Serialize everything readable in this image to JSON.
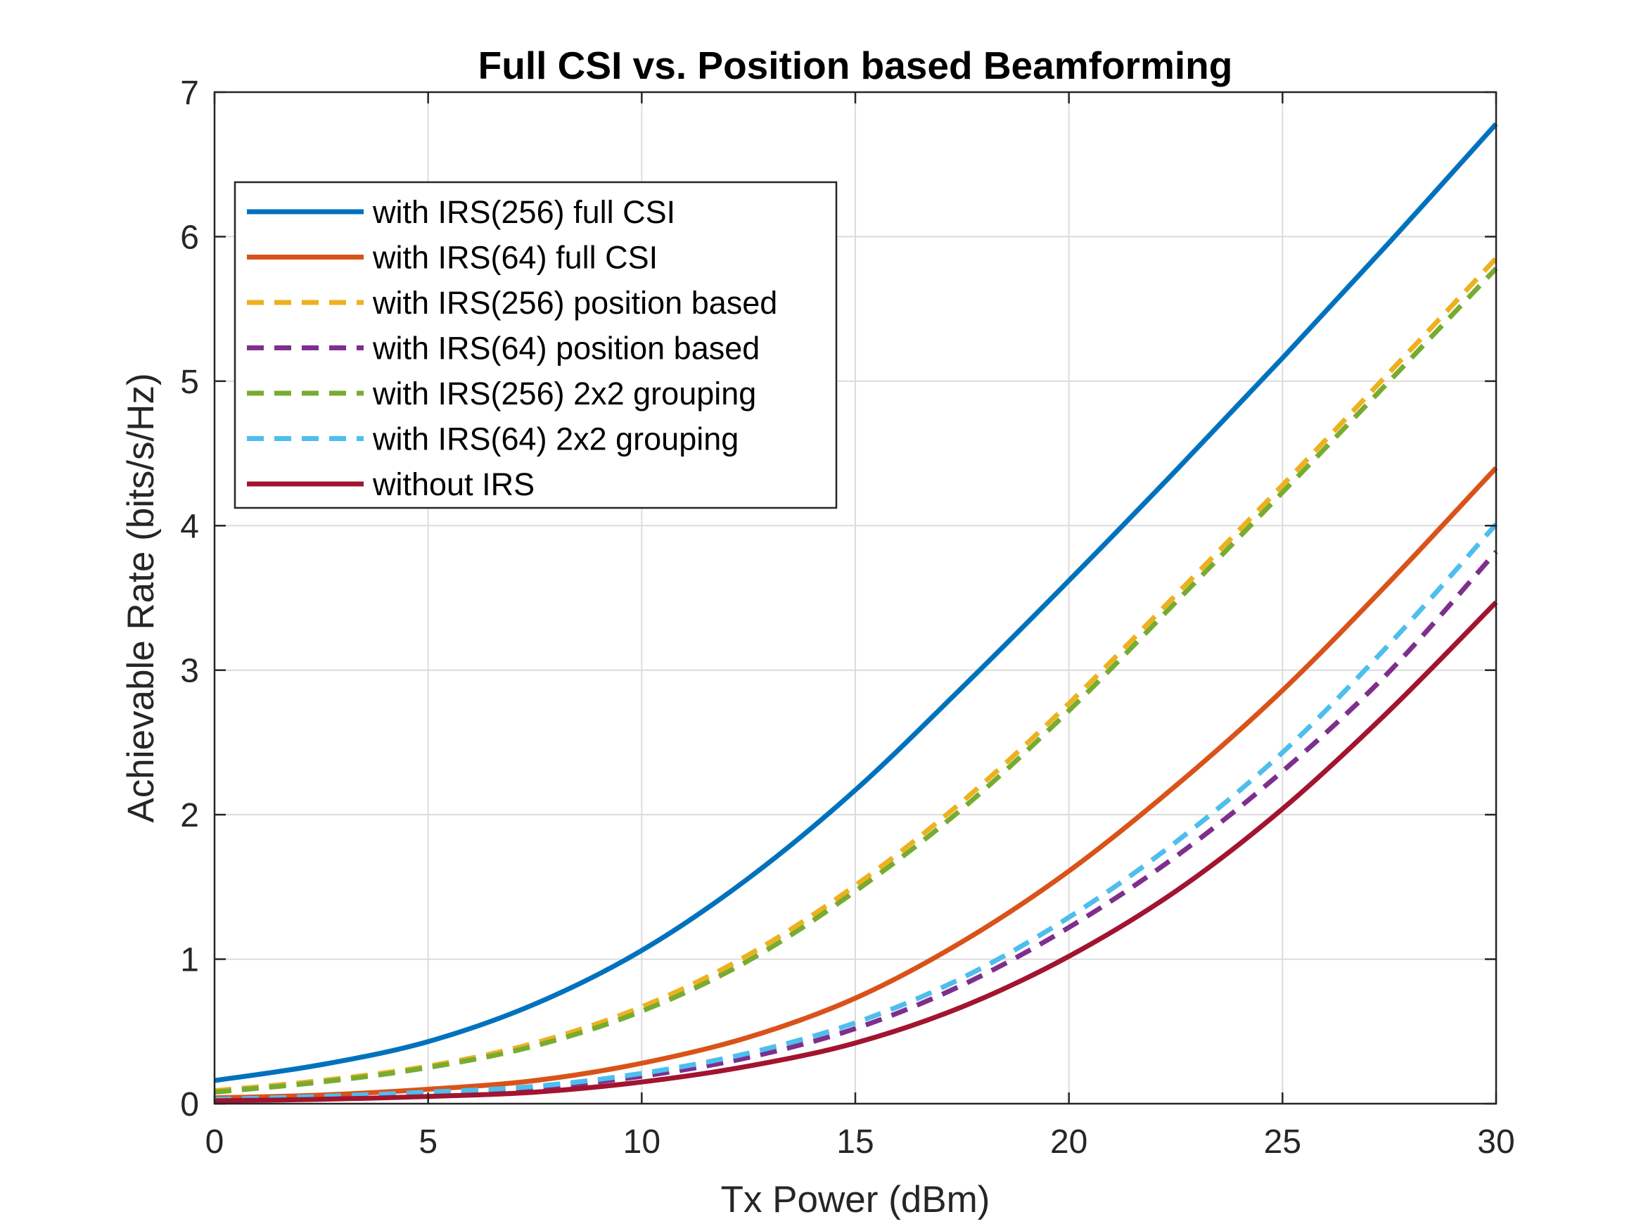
{
  "chart_data": {
    "type": "line",
    "title": "Full CSI vs. Position based Beamforming",
    "xlabel": "Tx Power (dBm)",
    "ylabel": "Achievable Rate (bits/s/Hz)",
    "xlim": [
      0,
      30
    ],
    "ylim": [
      0,
      7
    ],
    "xticks": [
      0,
      5,
      10,
      15,
      20,
      25,
      30
    ],
    "yticks": [
      0,
      1,
      2,
      3,
      4,
      5,
      6,
      7
    ],
    "grid": true,
    "legend_position": "top-left",
    "x": [
      0,
      2.5,
      5,
      7.5,
      10,
      12.5,
      15,
      17.5,
      20,
      22.5,
      25,
      27.5,
      30
    ],
    "series": [
      {
        "name": "with IRS(256) full CSI",
        "style": "solid",
        "color": "#0072BD",
        "values": [
          0.16,
          0.27,
          0.43,
          0.69,
          1.06,
          1.56,
          2.17,
          2.88,
          3.62,
          4.38,
          5.16,
          5.96,
          6.78
        ]
      },
      {
        "name": "with IRS(64) full CSI",
        "style": "solid",
        "color": "#D95319",
        "values": [
          0.04,
          0.06,
          0.1,
          0.16,
          0.28,
          0.46,
          0.73,
          1.12,
          1.61,
          2.2,
          2.86,
          3.61,
          4.4
        ]
      },
      {
        "name": "with IRS(256) position based",
        "style": "dashed",
        "color": "#EDB120",
        "values": [
          0.09,
          0.16,
          0.26,
          0.42,
          0.67,
          1.03,
          1.51,
          2.09,
          2.77,
          3.52,
          4.28,
          5.06,
          5.85
        ]
      },
      {
        "name": "with IRS(64) position based",
        "style": "dashed",
        "color": "#7E2F8E",
        "values": [
          0.03,
          0.04,
          0.07,
          0.11,
          0.19,
          0.32,
          0.52,
          0.82,
          1.22,
          1.71,
          2.3,
          2.99,
          3.82
        ]
      },
      {
        "name": "with IRS(256) 2x2 grouping",
        "style": "dashed",
        "color": "#77AC30",
        "values": [
          0.08,
          0.15,
          0.25,
          0.4,
          0.64,
          0.99,
          1.47,
          2.04,
          2.72,
          3.47,
          4.23,
          5.0,
          5.78
        ]
      },
      {
        "name": "with IRS(64) 2x2 grouping",
        "style": "dashed",
        "color": "#4DBEEE",
        "values": [
          0.03,
          0.05,
          0.08,
          0.12,
          0.21,
          0.35,
          0.56,
          0.87,
          1.29,
          1.81,
          2.43,
          3.18,
          4.01
        ]
      },
      {
        "name": "without IRS",
        "style": "solid",
        "color": "#A2142F",
        "values": [
          0.02,
          0.03,
          0.05,
          0.08,
          0.15,
          0.26,
          0.42,
          0.67,
          1.02,
          1.47,
          2.04,
          2.72,
          3.47
        ]
      }
    ]
  }
}
